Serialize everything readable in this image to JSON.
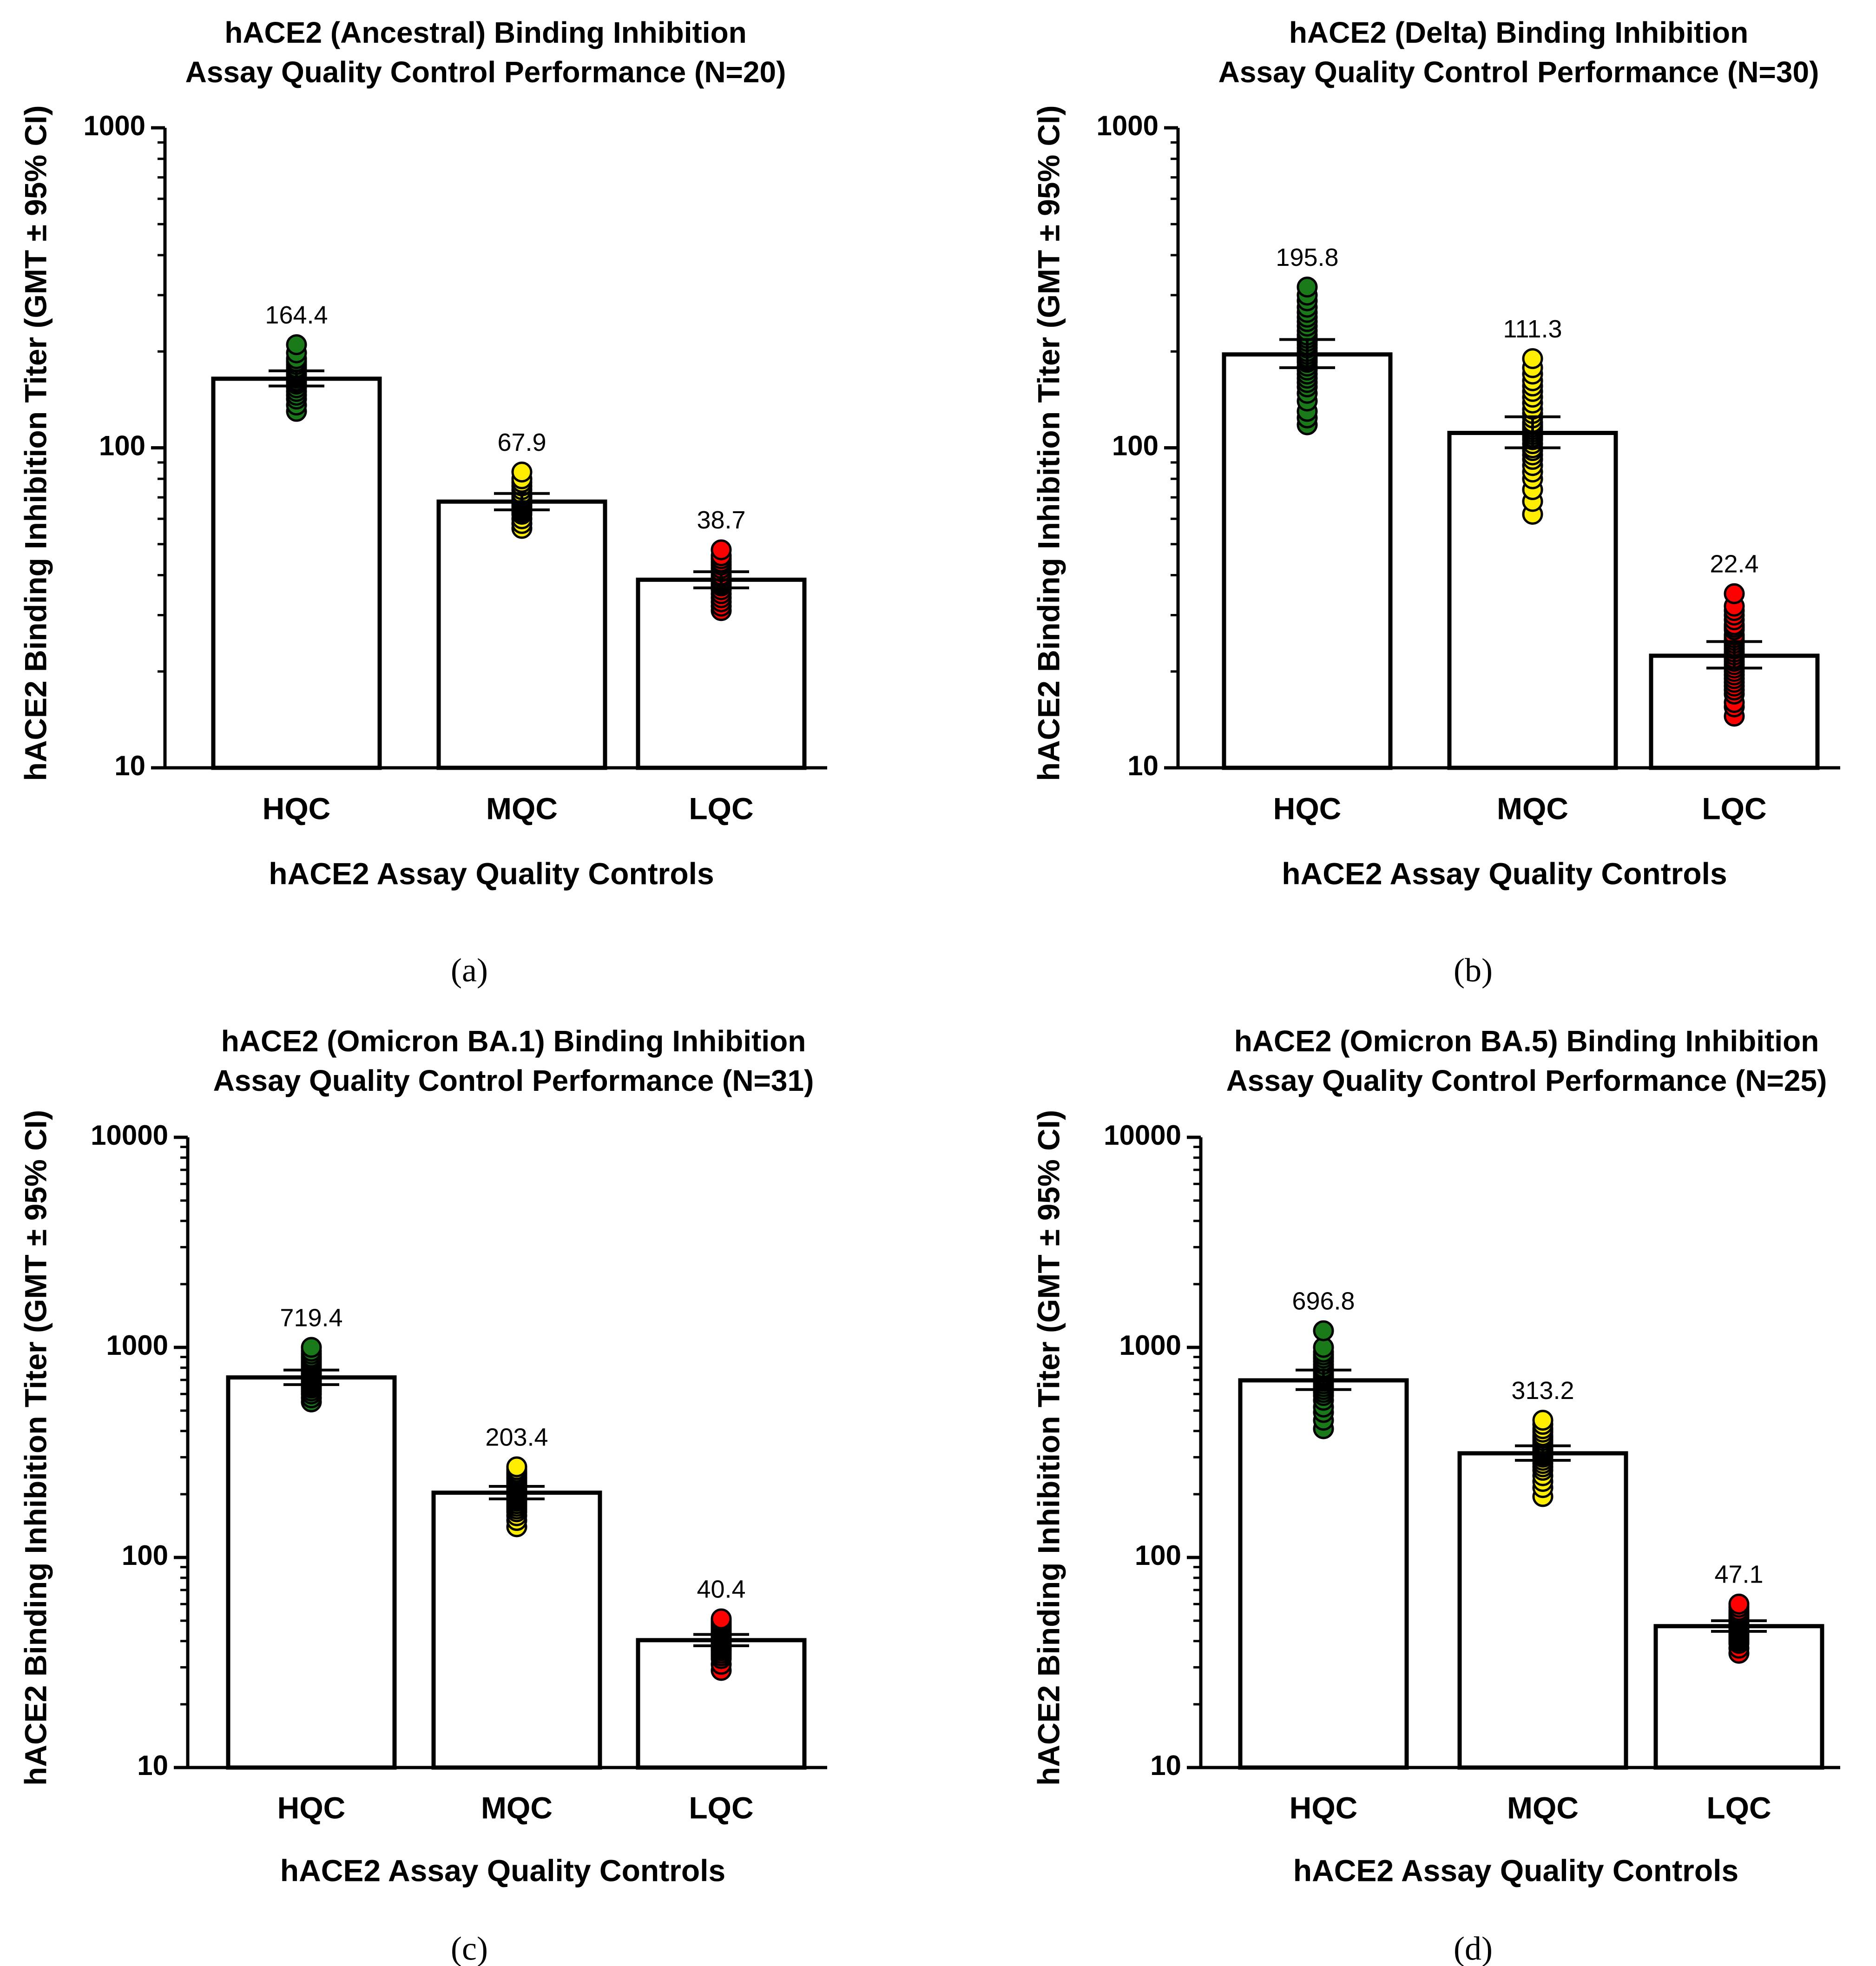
{
  "colors": {
    "HQC": "#1a7a1a",
    "MQC": "#ffee00",
    "LQC": "#ff0000",
    "bar_fill": "#ffffff",
    "stroke": "#000000"
  },
  "chart_data": [
    {
      "panel": "(a)",
      "type": "bar",
      "title": [
        "hACE2 (Ancestral) Binding Inhibition",
        "Assay Quality Control Performance (N=20)"
      ],
      "xlabel": "hACE2 Assay Quality Controls",
      "ylabel": "hACE2 Binding Inhibition Titer (GMT ± 95% CI)",
      "yscale": "log",
      "ylim": [
        10,
        1000
      ],
      "yticks": [
        10,
        100,
        1000
      ],
      "ytick_labels": [
        "10",
        "100",
        "1000"
      ],
      "categories": [
        "HQC",
        "MQC",
        "LQC"
      ],
      "values": [
        164.4,
        67.9,
        38.7
      ],
      "value_labels": [
        "164.4",
        "67.9",
        "38.7"
      ],
      "ci": [
        [
          156,
          174
        ],
        [
          64,
          72
        ],
        [
          36.5,
          41
        ]
      ],
      "points": [
        [
          130,
          136,
          142,
          146,
          150,
          154,
          158,
          160,
          162,
          165,
          168,
          170,
          172,
          175,
          178,
          182,
          186,
          190,
          198,
          210
        ],
        [
          56,
          58,
          60,
          62,
          63,
          64,
          65,
          66,
          67,
          68,
          68,
          69,
          70,
          71,
          72,
          74,
          76,
          78,
          80,
          84
        ],
        [
          31,
          32,
          33,
          34,
          35,
          36,
          37,
          37.5,
          38,
          38.5,
          39,
          39.5,
          40,
          41,
          42,
          43,
          44,
          45,
          46,
          48
        ]
      ]
    },
    {
      "panel": "(b)",
      "type": "bar",
      "title": [
        "hACE2 (Delta) Binding Inhibition",
        "Assay Quality Control Performance (N=30)"
      ],
      "xlabel": "hACE2 Assay Quality Controls",
      "ylabel": "hACE2 Binding Inhibition Titer (GMT ± 95% CI)",
      "yscale": "log",
      "ylim": [
        10,
        1000
      ],
      "yticks": [
        10,
        100,
        1000
      ],
      "ytick_labels": [
        "10",
        "100",
        "1000"
      ],
      "categories": [
        "HQC",
        "MQC",
        "LQC"
      ],
      "values": [
        195.8,
        111.3,
        22.4
      ],
      "value_labels": [
        "195.8",
        "111.3",
        "22.4"
      ],
      "ci": [
        [
          178,
          218
        ],
        [
          100,
          125
        ],
        [
          20.5,
          24.8
        ]
      ],
      "points": [
        [
          118,
          124,
          130,
          140,
          148,
          155,
          160,
          165,
          170,
          175,
          180,
          185,
          188,
          192,
          196,
          200,
          205,
          210,
          215,
          220,
          225,
          232,
          240,
          248,
          256,
          265,
          275,
          288,
          300,
          318
        ],
        [
          62,
          68,
          74,
          80,
          84,
          88,
          92,
          95,
          98,
          100,
          103,
          106,
          108,
          110,
          112,
          114,
          116,
          118,
          120,
          124,
          128,
          132,
          138,
          144,
          150,
          156,
          162,
          170,
          178,
          190
        ],
        [
          14.5,
          15.5,
          16,
          17,
          17.5,
          18,
          18.5,
          19,
          19.5,
          20,
          20.5,
          21,
          21.5,
          22,
          22.5,
          23,
          23.5,
          24,
          24.5,
          25,
          25.5,
          26,
          27,
          27.5,
          28,
          29,
          30,
          31,
          32,
          35
        ]
      ]
    },
    {
      "panel": "(c)",
      "type": "bar",
      "title": [
        "hACE2 (Omicron BA.1) Binding Inhibition",
        "Assay Quality Control Performance (N=31)"
      ],
      "xlabel": "hACE2 Assay Quality Controls",
      "ylabel": "hACE2 Binding Inhibition Titer (GMT ± 95% CI)",
      "yscale": "log",
      "ylim": [
        10,
        10000
      ],
      "yticks": [
        10,
        100,
        1000,
        10000
      ],
      "ytick_labels": [
        "10",
        "100",
        "1000",
        "10000"
      ],
      "categories": [
        "HQC",
        "MQC",
        "LQC"
      ],
      "values": [
        719.4,
        203.4,
        40.4
      ],
      "value_labels": [
        "719.4",
        "203.4",
        "40.4"
      ],
      "ci": [
        [
          665,
          780
        ],
        [
          190,
          218
        ],
        [
          38,
          43
        ]
      ],
      "points": [
        [
          550,
          575,
          600,
          620,
          640,
          655,
          665,
          675,
          685,
          695,
          700,
          705,
          710,
          715,
          720,
          725,
          730,
          740,
          750,
          760,
          770,
          780,
          800,
          820,
          840,
          860,
          880,
          900,
          930,
          960,
          1000
        ],
        [
          140,
          150,
          158,
          165,
          170,
          175,
          180,
          185,
          188,
          192,
          195,
          198,
          200,
          202,
          204,
          206,
          208,
          210,
          212,
          215,
          218,
          222,
          226,
          230,
          235,
          240,
          245,
          250,
          255,
          262,
          270
        ],
        [
          29,
          31,
          33,
          34,
          35,
          36,
          36.5,
          37,
          37.5,
          38,
          38.5,
          39,
          39.5,
          40,
          40.5,
          41,
          41.5,
          42,
          42.5,
          43,
          43.5,
          44,
          45,
          45.5,
          46,
          46.5,
          47,
          48,
          49,
          50,
          51
        ]
      ]
    },
    {
      "panel": "(d)",
      "type": "bar",
      "title": [
        "hACE2 (Omicron BA.5) Binding Inhibition",
        "Assay Quality Control Performance (N=25)"
      ],
      "xlabel": "hACE2 Assay Quality Controls",
      "ylabel": "hACE2 Binding Inhibition Titer (GMT ± 95% CI)",
      "yscale": "log",
      "ylim": [
        10,
        10000
      ],
      "yticks": [
        10,
        100,
        1000,
        10000
      ],
      "ytick_labels": [
        "10",
        "100",
        "1000",
        "10000"
      ],
      "categories": [
        "HQC",
        "MQC",
        "LQC"
      ],
      "values": [
        696.8,
        313.2,
        47.1
      ],
      "value_labels": [
        "696.8",
        "313.2",
        "47.1"
      ],
      "ci": [
        [
          630,
          780
        ],
        [
          290,
          340
        ],
        [
          44.5,
          50
        ]
      ],
      "points": [
        [
          410,
          450,
          490,
          520,
          560,
          590,
          610,
          630,
          650,
          670,
          690,
          700,
          710,
          725,
          740,
          760,
          780,
          800,
          830,
          860,
          890,
          920,
          950,
          1000,
          1200
        ],
        [
          195,
          215,
          230,
          245,
          260,
          270,
          280,
          290,
          300,
          305,
          310,
          315,
          320,
          325,
          330,
          335,
          340,
          350,
          360,
          370,
          380,
          395,
          410,
          430,
          450
        ],
        [
          35,
          37,
          39,
          40,
          41,
          42,
          43,
          44,
          44.5,
          45,
          46,
          46.5,
          47,
          47.5,
          48,
          49,
          50,
          51,
          52,
          53,
          54,
          55,
          56,
          58,
          60
        ]
      ]
    }
  ]
}
